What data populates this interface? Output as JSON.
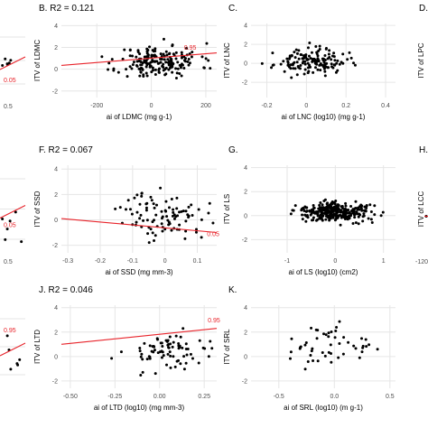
{
  "chart_data": [
    {
      "id": "A-partial",
      "type": "scatter",
      "partial": "left",
      "frag": {
        "xticks": [
          "0.5"
        ],
        "label": "0.05",
        "label_y": -0.5
      }
    },
    {
      "id": "B",
      "type": "scatter",
      "title": "B. R2 = 0.121",
      "ylabel": "ITV of LDMC",
      "xlabel": "ai of LDMC (mg g-1)",
      "xlim": [
        -330,
        240
      ],
      "ylim": [
        -2.6,
        4.2
      ],
      "xticks": [
        -200,
        0,
        200
      ],
      "yticks": [
        -2,
        0,
        2,
        4
      ],
      "fit": {
        "x0": -330,
        "y0": 0.35,
        "x1": 240,
        "y1": 1.5
      },
      "fit_label": "0.95",
      "fit_label_at": [
        120,
        1.8
      ],
      "cloud": {
        "seed": 11,
        "n": 190,
        "cx": 30,
        "sx": 75,
        "cy": 0.7,
        "sy": 0.75
      }
    },
    {
      "id": "C",
      "type": "scatter",
      "title": "C.",
      "ylabel": "ITV of LNC",
      "xlabel": "ai of LNC (log10) (mg g-1)",
      "xlim": [
        -0.28,
        0.45
      ],
      "ylim": [
        -3.6,
        4.2
      ],
      "xticks": [
        -0.2,
        0,
        0.2,
        0.4
      ],
      "yticks": [
        -2,
        0,
        2,
        4
      ],
      "cloud": {
        "seed": 23,
        "n": 150,
        "cx": 0.02,
        "sx": 0.09,
        "cy": 0.15,
        "sy": 0.65
      }
    },
    {
      "id": "D-partial",
      "type": "scatter",
      "title": "D.",
      "ylabel": "ITV of LPC",
      "partial": "right",
      "frag": {}
    },
    {
      "id": "E-partial",
      "type": "scatter",
      "partial": "left",
      "frag": {
        "xticks": [
          "0.5"
        ],
        "label": "0.05",
        "label_y": 0.3
      }
    },
    {
      "id": "F",
      "type": "scatter",
      "title": "F. R2 = 0.067",
      "ylabel": "ITV of SSD",
      "xlabel": "ai of SSD (mg mm-3)",
      "xlim": [
        -0.32,
        0.16
      ],
      "ylim": [
        -2.6,
        4.3
      ],
      "xticks": [
        -0.3,
        -0.2,
        -0.1,
        0,
        0.1
      ],
      "yticks": [
        -2,
        0,
        2,
        4
      ],
      "fit": {
        "x0": -0.32,
        "y0": 0.1,
        "x1": 0.16,
        "y1": -1.0
      },
      "fit_label": "0.05",
      "fit_label_at": [
        0.13,
        -1.3
      ],
      "cloud": {
        "seed": 37,
        "n": 95,
        "cx": 0.0,
        "sx": 0.065,
        "cy": 0.3,
        "sy": 0.9
      }
    },
    {
      "id": "G",
      "type": "scatter",
      "title": "G.",
      "ylabel": "ITV of LS",
      "xlabel": "ai of LS (log10) (cm2)",
      "xlim": [
        -1.75,
        1.25
      ],
      "ylim": [
        -3.1,
        4.2
      ],
      "xticks": [
        -1,
        0,
        1
      ],
      "yticks": [
        -2,
        0,
        2,
        4
      ],
      "cloud": {
        "seed": 41,
        "n": 320,
        "cx": 0.0,
        "sx": 0.38,
        "cy": 0.3,
        "sy": 0.38
      }
    },
    {
      "id": "H-partial",
      "type": "scatter",
      "title": "H.",
      "ylabel": "ITV of LCC",
      "partial": "right",
      "frag": {
        "xticks": [
          "-120"
        ]
      }
    },
    {
      "id": "I-partial",
      "type": "scatter",
      "partial": "left",
      "frag": {
        "label": "0.95"
      }
    },
    {
      "id": "J",
      "type": "scatter",
      "title": "J. R2 = 0.046",
      "ylabel": "ITV of LTD",
      "xlabel": "ai of LTD (log10) (mg mm-3)",
      "xlim": [
        -0.55,
        0.32
      ],
      "ylim": [
        -2.6,
        4.2
      ],
      "xticks": [
        -0.5,
        -0.25,
        0,
        0.25
      ],
      "xticklabels": [
        "-0.50",
        "-0.25",
        "0.00",
        "0.25"
      ],
      "yticks": [
        -2,
        0,
        2,
        4
      ],
      "fit": {
        "x0": -0.55,
        "y0": 1.0,
        "x1": 0.32,
        "y1": 2.3
      },
      "fit_label": "0.95",
      "fit_label_at": [
        0.27,
        2.8
      ],
      "cloud": {
        "seed": 53,
        "n": 80,
        "cx": 0.05,
        "sx": 0.12,
        "cy": 0.5,
        "sy": 0.8
      }
    },
    {
      "id": "K",
      "type": "scatter",
      "title": "K.",
      "ylabel": "ITV of SRL",
      "xlabel": "ai of SRL (log10) (m g-1)",
      "xlim": [
        -0.75,
        0.55
      ],
      "ylim": [
        -2.6,
        4.2
      ],
      "xticks": [
        -0.5,
        0,
        0.5
      ],
      "xticklabels": [
        "-0.5",
        "0.0",
        "0.5"
      ],
      "yticks": [
        -2,
        0,
        2,
        4
      ],
      "cloud": {
        "seed": 67,
        "n": 50,
        "cx": -0.05,
        "sx": 0.2,
        "cy": 0.7,
        "sy": 0.85
      }
    }
  ]
}
